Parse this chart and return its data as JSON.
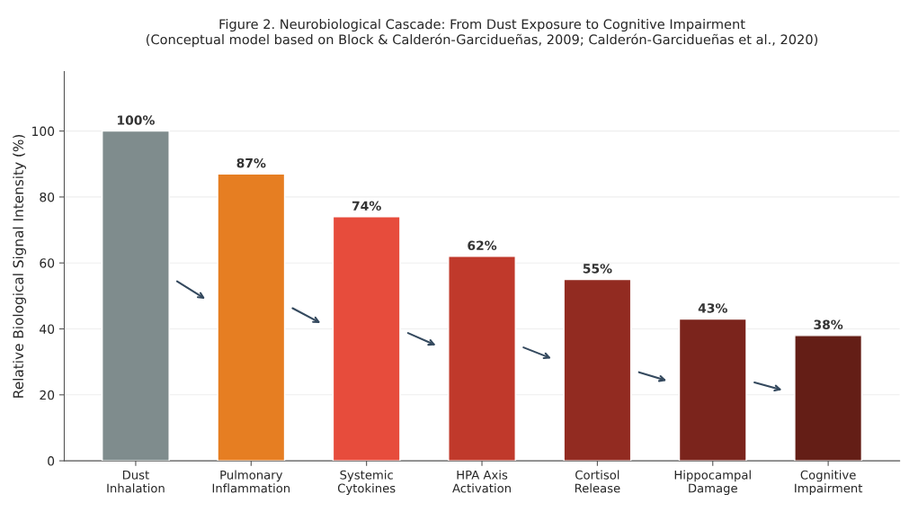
{
  "chart_data": {
    "type": "bar",
    "title": "Figure 2. Neurobiological Cascade: From Dust Exposure to Cognitive Impairment\n(Conceptual model based on Block & Calderón-Garcidueñas, 2009; Calderón-Garcidueñas et al., 2020)",
    "ylabel": "Relative Biological Signal Intensity (%)",
    "categories": [
      "Dust\nInhalation",
      "Pulmonary\nInflammation",
      "Systemic\nCytokines",
      "HPA Axis\nActivation",
      "Cortisol\nRelease",
      "Hippocampal\nDamage",
      "Cognitive\nImpairment"
    ],
    "values": [
      100,
      87,
      74,
      62,
      55,
      43,
      38
    ],
    "colors": [
      "#7f8c8d",
      "#e67e22",
      "#e74c3c",
      "#c0392b",
      "#922b21",
      "#7b241c",
      "#641e16"
    ],
    "value_labels": [
      "100%",
      "87%",
      "74%",
      "62%",
      "55%",
      "43%",
      "38%"
    ],
    "ylim": [
      0,
      118
    ],
    "yticks": [
      0,
      20,
      40,
      60,
      80,
      100
    ],
    "grid": "y"
  }
}
